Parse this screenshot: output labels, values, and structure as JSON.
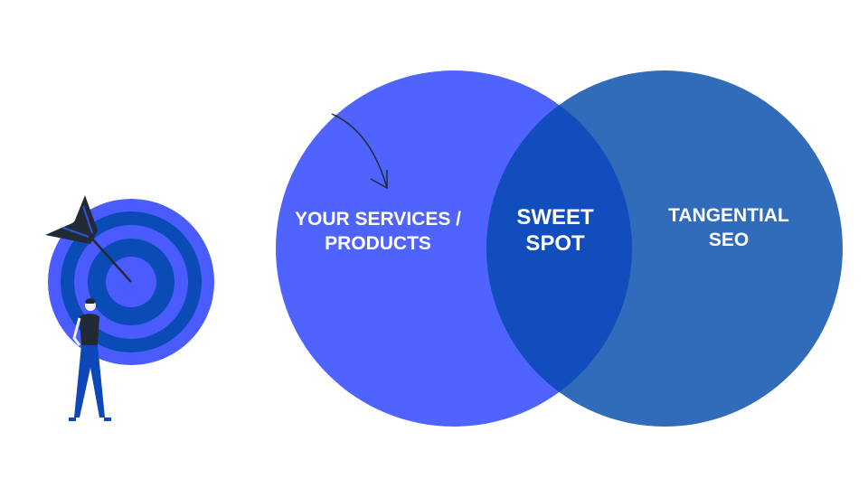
{
  "diagram": {
    "type": "venn",
    "sets": [
      {
        "id": "left",
        "label_lines": [
          "YOUR SERVICES /",
          "PRODUCTS"
        ],
        "color": "#4f63fe"
      },
      {
        "id": "right",
        "label_lines": [
          "TANGENTIAL",
          "SEO"
        ],
        "color": "#316cba"
      }
    ],
    "overlap": {
      "label_lines": [
        "SWEET",
        "SPOT"
      ],
      "color": "#124dbd"
    }
  },
  "illustration": {
    "subject": "person looking at a dartboard target with an arrow in the bullseye",
    "colors": {
      "target_light": "#4a5cff",
      "target_dark": "#0b4bb5",
      "shirt": "#222a36",
      "pants": "#0d47b8"
    }
  }
}
